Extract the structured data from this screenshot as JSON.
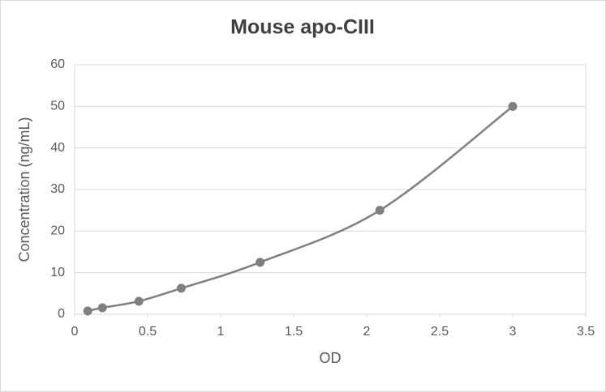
{
  "chart_data": {
    "type": "scatter",
    "title": "Mouse apo-CIII",
    "x_label": "OD",
    "y_label": "Concentration (ng/mL)",
    "series": [
      {
        "name": "Mouse apo-CIII",
        "color": "#7f7f7f",
        "x": [
          0.09,
          0.19,
          0.44,
          0.73,
          1.27,
          2.09,
          3.0
        ],
        "values": [
          0.78,
          1.56,
          3.125,
          6.25,
          12.5,
          25,
          50
        ]
      }
    ],
    "xlim": [
      0,
      3.5
    ],
    "xticks": [
      0,
      0.5,
      1,
      1.5,
      2,
      2.5,
      3,
      3.5
    ],
    "ylim": [
      0,
      60
    ],
    "yticks": [
      0,
      10,
      20,
      30,
      40,
      50,
      60
    ],
    "grid": true,
    "smooth": true
  }
}
